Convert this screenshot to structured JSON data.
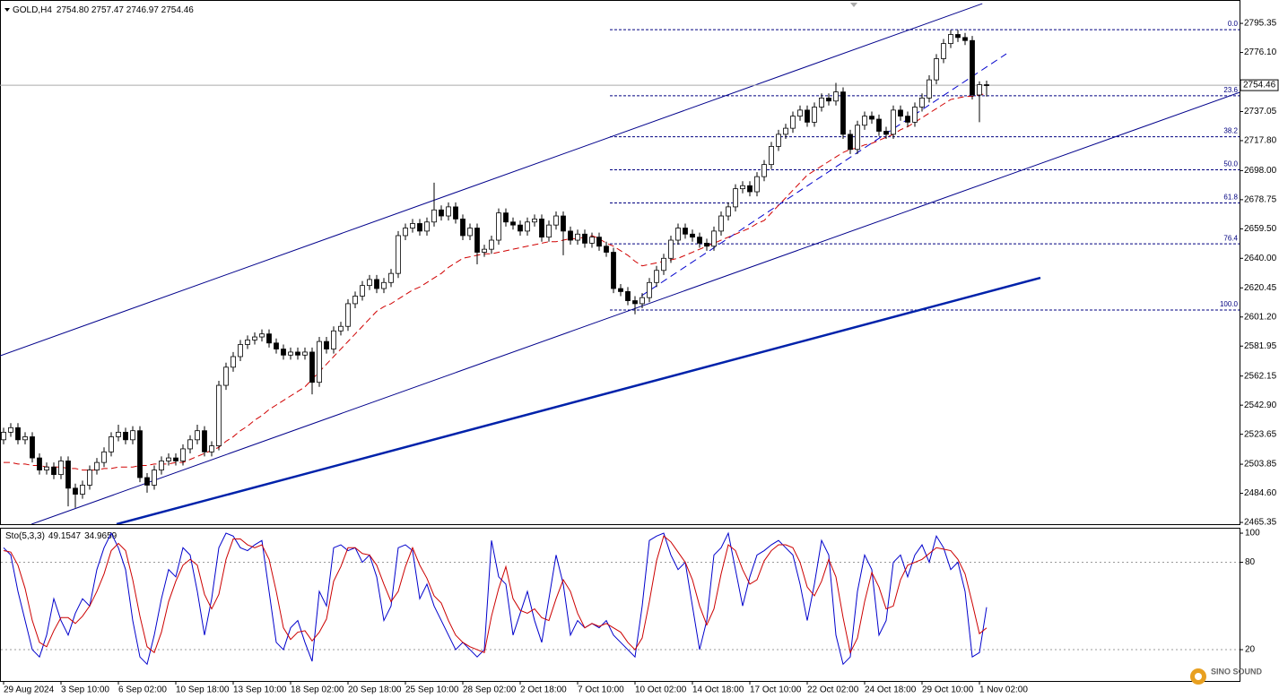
{
  "chart_data": {
    "type": "candlestick",
    "title": "GOLD,H4",
    "subtitle": "2754.80 2757.47 2746.97 2754.46",
    "categories": [
      "29 Aug 2024",
      null,
      null,
      null,
      null,
      null,
      null,
      null,
      "3 Sep 10:00",
      null,
      null,
      null,
      null,
      null,
      null,
      null,
      "6 Sep 02:00",
      null,
      null,
      null,
      null,
      null,
      null,
      null,
      "10 Sep 18:00",
      null,
      null,
      null,
      null,
      null,
      null,
      null,
      "13 Sep 10:00",
      null,
      null,
      null,
      null,
      null,
      null,
      null,
      "18 Sep 02:00",
      null,
      null,
      null,
      null,
      null,
      null,
      null,
      "20 Sep 18:00",
      null,
      null,
      null,
      null,
      null,
      null,
      null,
      "25 Sep 10:00",
      null,
      null,
      null,
      null,
      null,
      null,
      null,
      "28 Sep 02:00",
      null,
      null,
      null,
      null,
      null,
      null,
      null,
      "2 Oct 18:00",
      null,
      null,
      null,
      null,
      null,
      null,
      null,
      "7 Oct 10:00",
      null,
      null,
      null,
      null,
      null,
      null,
      null,
      "10 Oct 02:00",
      null,
      null,
      null,
      null,
      null,
      null,
      null,
      "14 Oct 18:00",
      null,
      null,
      null,
      null,
      null,
      null,
      null,
      "17 Oct 10:00",
      null,
      null,
      null,
      null,
      null,
      null,
      null,
      "22 Oct 02:00",
      null,
      null,
      null,
      null,
      null,
      null,
      null,
      "24 Oct 18:00",
      null,
      null,
      null,
      null,
      null,
      null,
      null,
      "29 Oct 10:00",
      null,
      null,
      null,
      null,
      null,
      null,
      null,
      "1 Nov 02:00",
      null
    ],
    "open": [
      2520,
      2525,
      2528,
      2520,
      2522,
      2508,
      2500,
      2502,
      2497,
      2506,
      2488,
      2484,
      2490,
      2500,
      2505,
      2512,
      2522,
      2525,
      2520,
      2526,
      2495,
      2490,
      2500,
      2506,
      2508,
      2506,
      2514,
      2520,
      2526,
      2512,
      2516,
      2556,
      2568,
      2575,
      2583,
      2586,
      2588,
      2590,
      2584,
      2580,
      2576,
      2578,
      2576,
      2578,
      2558,
      2585,
      2580,
      2592,
      2595,
      2610,
      2615,
      2622,
      2626,
      2620,
      2624,
      2630,
      2655,
      2660,
      2663,
      2658,
      2664,
      2672,
      2668,
      2674,
      2666,
      2655,
      2660,
      2644,
      2646,
      2652,
      2670,
      2664,
      2662,
      2658,
      2664,
      2666,
      2654,
      2662,
      2668,
      2658,
      2652,
      2656,
      2650,
      2654,
      2648,
      2644,
      2620,
      2618,
      2612,
      2610,
      2614,
      2624,
      2632,
      2640,
      2652,
      2660,
      2656,
      2654,
      2650,
      2648,
      2658,
      2668,
      2674,
      2686,
      2688,
      2684,
      2694,
      2702,
      2714,
      2722,
      2726,
      2734,
      2738,
      2730,
      2740,
      2746,
      2744,
      2750,
      2722,
      2712,
      2728,
      2734,
      2732,
      2724,
      2722,
      2738,
      2734,
      2730,
      2740,
      2746,
      2758,
      2772,
      2782,
      2788,
      2786,
      2784,
      2748,
      2754.8
    ],
    "high": [
      2528,
      2531,
      2531,
      2525,
      2525,
      2511,
      2505,
      2505,
      2509,
      2509,
      2491,
      2493,
      2503,
      2508,
      2515,
      2525,
      2530,
      2528,
      2529,
      2529,
      2498,
      2503,
      2509,
      2511,
      2511,
      2517,
      2523,
      2530,
      2529,
      2519,
      2559,
      2571,
      2578,
      2586,
      2589,
      2591,
      2593,
      2593,
      2587,
      2583,
      2581,
      2581,
      2581,
      2581,
      2588,
      2588,
      2595,
      2598,
      2613,
      2618,
      2625,
      2629,
      2629,
      2627,
      2633,
      2658,
      2663,
      2666,
      2666,
      2667,
      2690,
      2675,
      2677,
      2677,
      2669,
      2663,
      2663,
      2649,
      2655,
      2673,
      2673,
      2667,
      2665,
      2667,
      2669,
      2669,
      2665,
      2671,
      2671,
      2661,
      2659,
      2659,
      2657,
      2657,
      2651,
      2647,
      2623,
      2621,
      2615,
      2617,
      2627,
      2635,
      2643,
      2655,
      2663,
      2663,
      2659,
      2657,
      2653,
      2661,
      2671,
      2677,
      2689,
      2691,
      2691,
      2697,
      2705,
      2717,
      2725,
      2729,
      2737,
      2741,
      2741,
      2743,
      2749,
      2749,
      2756,
      2753,
      2725,
      2731,
      2737,
      2737,
      2735,
      2727,
      2741,
      2741,
      2737,
      2743,
      2749,
      2761,
      2775,
      2785,
      2791,
      2791,
      2789,
      2787,
      2757,
      2757.47
    ],
    "low": [
      2517,
      2522,
      2517,
      2517,
      2505,
      2497,
      2497,
      2494,
      2494,
      2476,
      2475,
      2481,
      2487,
      2497,
      2502,
      2509,
      2519,
      2517,
      2517,
      2492,
      2485,
      2487,
      2497,
      2503,
      2503,
      2503,
      2511,
      2517,
      2509,
      2509,
      2513,
      2553,
      2565,
      2572,
      2580,
      2583,
      2585,
      2581,
      2577,
      2573,
      2573,
      2573,
      2573,
      2550,
      2555,
      2577,
      2577,
      2589,
      2592,
      2607,
      2612,
      2619,
      2617,
      2617,
      2621,
      2627,
      2652,
      2657,
      2655,
      2655,
      2661,
      2665,
      2665,
      2663,
      2652,
      2652,
      2636,
      2641,
      2643,
      2649,
      2661,
      2659,
      2655,
      2655,
      2661,
      2651,
      2651,
      2659,
      2642,
      2649,
      2649,
      2647,
      2647,
      2645,
      2641,
      2617,
      2615,
      2609,
      2603,
      2607,
      2611,
      2621,
      2629,
      2637,
      2649,
      2653,
      2651,
      2647,
      2645,
      2645,
      2655,
      2665,
      2671,
      2683,
      2681,
      2681,
      2691,
      2699,
      2711,
      2719,
      2723,
      2731,
      2727,
      2727,
      2737,
      2741,
      2741,
      2719,
      2709,
      2709,
      2725,
      2729,
      2721,
      2719,
      2719,
      2731,
      2727,
      2727,
      2737,
      2743,
      2755,
      2769,
      2779,
      2783,
      2781,
      2745,
      2730,
      2746.97
    ],
    "close": [
      2525,
      2528,
      2520,
      2522,
      2508,
      2500,
      2502,
      2497,
      2506,
      2488,
      2484,
      2490,
      2500,
      2505,
      2512,
      2522,
      2525,
      2520,
      2526,
      2495,
      2490,
      2500,
      2506,
      2508,
      2506,
      2514,
      2520,
      2526,
      2512,
      2516,
      2556,
      2568,
      2575,
      2583,
      2586,
      2588,
      2590,
      2584,
      2580,
      2576,
      2578,
      2576,
      2578,
      2558,
      2585,
      2580,
      2592,
      2595,
      2610,
      2615,
      2622,
      2626,
      2620,
      2624,
      2630,
      2655,
      2660,
      2663,
      2658,
      2664,
      2672,
      2668,
      2674,
      2666,
      2655,
      2660,
      2644,
      2646,
      2652,
      2670,
      2664,
      2662,
      2658,
      2664,
      2666,
      2654,
      2662,
      2668,
      2658,
      2652,
      2656,
      2650,
      2654,
      2648,
      2644,
      2620,
      2618,
      2612,
      2610,
      2614,
      2624,
      2632,
      2640,
      2652,
      2660,
      2656,
      2654,
      2650,
      2648,
      2658,
      2668,
      2674,
      2686,
      2688,
      2684,
      2694,
      2702,
      2714,
      2722,
      2726,
      2734,
      2738,
      2730,
      2740,
      2746,
      2744,
      2750,
      2722,
      2712,
      2728,
      2734,
      2732,
      2724,
      2722,
      2738,
      2734,
      2730,
      2740,
      2746,
      2758,
      2772,
      2782,
      2788,
      2786,
      2784,
      2748,
      2754.8,
      2754.46
    ],
    "up_color": "#ffffff",
    "down_color": "#000000",
    "ma": {
      "color": "#d00000",
      "values": [
        2505,
        2505,
        2504,
        2504,
        2503,
        2503,
        2502,
        2502,
        2502,
        2501,
        2501,
        2500,
        2500,
        2500,
        2501,
        2501,
        2502,
        2502,
        2502,
        2503,
        2503,
        2504,
        2504,
        2504,
        2505,
        2505,
        2507,
        2509,
        2511,
        2513,
        2515,
        2519,
        2522,
        2526,
        2529,
        2533,
        2536,
        2540,
        2543,
        2546,
        2549,
        2552,
        2555,
        2560,
        2565,
        2570,
        2575,
        2580,
        2585,
        2590,
        2595,
        2600,
        2605,
        2608,
        2610,
        2613,
        2616,
        2619,
        2621,
        2624,
        2627,
        2630,
        2634,
        2637,
        2640,
        2641,
        2642,
        2643,
        2643,
        2644,
        2645,
        2646,
        2647,
        2648,
        2649,
        2650,
        2651,
        2651,
        2652,
        2653,
        2653,
        2654,
        2655,
        2653,
        2650,
        2648,
        2645,
        2642,
        2638,
        2635,
        2636,
        2637,
        2638,
        2639,
        2640,
        2642,
        2644,
        2646,
        2648,
        2650,
        2652,
        2654,
        2656,
        2658,
        2660,
        2663,
        2665,
        2670,
        2675,
        2680,
        2685,
        2690,
        2695,
        2698,
        2701,
        2704,
        2707,
        2710,
        2712,
        2713,
        2715,
        2716,
        2718,
        2720,
        2722,
        2725,
        2727,
        2730,
        2733,
        2736,
        2739,
        2742,
        2745,
        2746,
        2747,
        2747,
        2748,
        2749
      ]
    },
    "ylim": [
      2464.2,
      2810.8
    ],
    "yticks": [
      2795.35,
      {
        "value": 2776.1,
        "label": "2776.10"
      },
      2737.05,
      {
        "value": 2717.8,
        "label": "2717.80"
      },
      {
        "value": 2698,
        "label": "2698.00"
      },
      2678.75,
      {
        "value": 2659.5,
        "label": "2659.50"
      },
      {
        "value": 2640,
        "label": "2640.00"
      },
      2620.45,
      {
        "value": 2601.2,
        "label": "2601.20"
      },
      2581.95,
      2562.15,
      {
        "value": 2542.9,
        "label": "2542.90"
      },
      2523.65,
      2503.85,
      {
        "value": 2484.6,
        "label": "2484.60"
      },
      2465.35
    ],
    "fibo": {
      "color": "#000080",
      "high": 2791.2,
      "low": 2605.8,
      "start": 84.5,
      "levels": [
        {
          "value": 0,
          "label": "0.0"
        },
        23.6,
        38.2,
        {
          "value": 50,
          "label": "50.0"
        },
        61.8,
        76.4,
        {
          "value": 100,
          "label": "100.0"
        }
      ]
    },
    "trendlines": [
      {
        "from": [
          -0.5,
          2575.5
        ],
        "to": [
          136.4,
          2808.4
        ],
        "color": "#00008b",
        "style": "solid"
      },
      {
        "from": [
          3.9,
          2464.2
        ],
        "to": [
          172.25,
          2749.7
        ],
        "color": "#00008b",
        "style": "solid"
      },
      {
        "from": [
          15.75,
          2464.2
        ],
        "to": [
          144.5,
          2627.1
        ],
        "color": "#0022aa",
        "style": "thick"
      },
      {
        "from": [
          88.9,
          2615.2
        ],
        "to": [
          139.75,
          2775.2
        ],
        "color": "#0000cc",
        "style": "dashed"
      }
    ],
    "indicator": {
      "type": "line",
      "title": "Sto(5,3,3)",
      "series": [
        {
          "color": "#0000cc",
          "values": [
            90,
            85,
            60,
            40,
            20,
            15,
            30,
            55,
            40,
            30,
            45,
            55,
            50,
            75,
            90,
            100,
            90,
            75,
            40,
            15,
            10,
            30,
            55,
            75,
            70,
            90,
            85,
            60,
            30,
            55,
            90,
            100,
            98,
            90,
            88,
            92,
            95,
            60,
            25,
            20,
            35,
            40,
            25,
            12,
            60,
            50,
            90,
            92,
            88,
            90,
            80,
            85,
            70,
            40,
            50,
            90,
            92,
            88,
            55,
            65,
            50,
            40,
            30,
            20,
            25,
            20,
            15,
            20,
            95,
            70,
            65,
            30,
            45,
            60,
            40,
            25,
            55,
            85,
            65,
            30,
            40,
            35,
            38,
            35,
            40,
            30,
            25,
            20,
            15,
            50,
            95,
            98,
            100,
            85,
            75,
            80,
            50,
            20,
            40,
            85,
            90,
            100,
            75,
            50,
            70,
            85,
            88,
            92,
            95,
            90,
            85,
            65,
            40,
            65,
            95,
            85,
            30,
            10,
            15,
            60,
            85,
            75,
            30,
            40,
            80,
            85,
            70,
            85,
            92,
            80,
            98,
            90,
            75,
            80,
            60,
            15,
            18,
            49.1547
          ]
        },
        {
          "color": "#cc0000",
          "values": [
            88,
            87,
            78,
            62,
            40,
            25,
            22,
            33,
            42,
            42,
            38,
            43,
            50,
            60,
            72,
            88,
            93,
            88,
            68,
            43,
            22,
            18,
            32,
            53,
            67,
            78,
            82,
            78,
            58,
            48,
            58,
            82,
            96,
            96,
            92,
            90,
            92,
            82,
            60,
            35,
            27,
            32,
            33,
            26,
            32,
            41,
            67,
            77,
            90,
            90,
            86,
            85,
            78,
            65,
            53,
            60,
            77,
            90,
            78,
            69,
            57,
            52,
            40,
            30,
            25,
            22,
            20,
            18,
            43,
            62,
            77,
            55,
            47,
            45,
            48,
            42,
            40,
            55,
            68,
            60,
            45,
            35,
            38,
            36,
            38,
            35,
            32,
            25,
            20,
            28,
            53,
            81,
            98,
            94,
            87,
            80,
            68,
            50,
            37,
            48,
            72,
            92,
            88,
            75,
            65,
            68,
            81,
            88,
            92,
            92,
            90,
            80,
            63,
            57,
            67,
            82,
            70,
            42,
            18,
            28,
            53,
            73,
            63,
            48,
            50,
            68,
            78,
            80,
            82,
            86,
            90,
            89,
            88,
            82,
            72,
            52,
            31,
            34.9659
          ]
        }
      ],
      "ylim": [
        -1.5,
        103.1
      ],
      "yticks": [
        100,
        80,
        20
      ],
      "levels": [
        80,
        20
      ]
    }
  },
  "watermark": "SINO SOUND"
}
